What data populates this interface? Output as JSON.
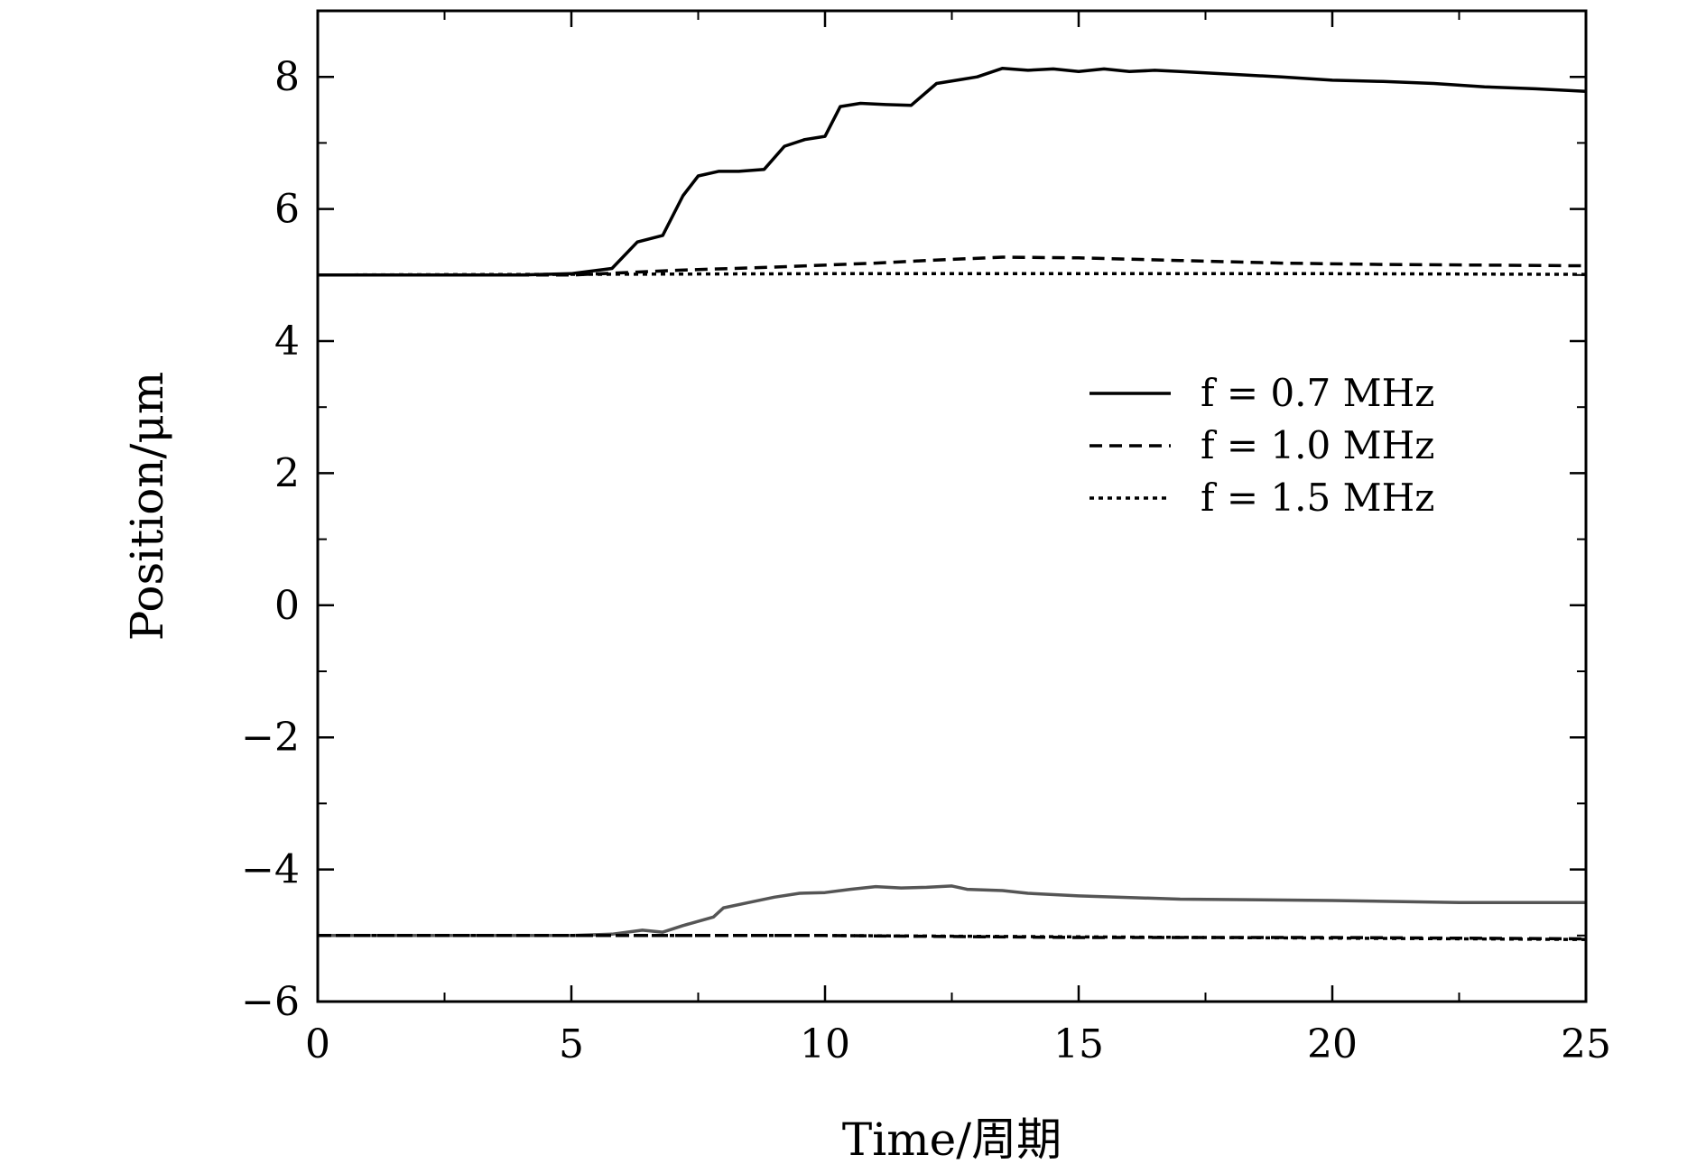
{
  "chart_data": {
    "type": "line",
    "xlabel": "Time/周期",
    "ylabel": "Position/μm",
    "xlim": [
      0,
      25
    ],
    "ylim": [
      -6,
      9
    ],
    "xticks": [
      0,
      5,
      10,
      15,
      20,
      25
    ],
    "xtick_labels": [
      "0",
      "5",
      "10",
      "15",
      "20",
      "25"
    ],
    "yticks": [
      -6,
      -4,
      -2,
      0,
      2,
      4,
      6,
      8
    ],
    "ytick_labels": [
      "−6",
      "−4",
      "−2",
      "0",
      "2",
      "4",
      "6",
      "8"
    ],
    "grid": false,
    "legend_position": "center-right",
    "series": [
      {
        "name": "f = 0.7 MHz",
        "style": "solid",
        "color": "#000000",
        "x": [
          0,
          4,
          5,
          5.8,
          6.3,
          6.8,
          7.2,
          7.5,
          7.9,
          8.3,
          8.8,
          9.2,
          9.6,
          10.0,
          10.3,
          10.7,
          11.2,
          11.7,
          12.2,
          12.6,
          13.0,
          13.5,
          14.0,
          14.5,
          15.0,
          15.5,
          16.0,
          16.5,
          17.0,
          18,
          19,
          20,
          21,
          22,
          23,
          24,
          25
        ],
        "y": [
          5.0,
          5.0,
          5.02,
          5.1,
          5.5,
          5.6,
          6.2,
          6.5,
          6.57,
          6.57,
          6.6,
          6.95,
          7.05,
          7.1,
          7.55,
          7.6,
          7.58,
          7.57,
          7.9,
          7.95,
          8.0,
          8.13,
          8.1,
          8.12,
          8.08,
          8.12,
          8.08,
          8.1,
          8.08,
          8.04,
          8.0,
          7.95,
          7.93,
          7.9,
          7.85,
          7.82,
          7.78
        ]
      },
      {
        "name": "f = 1.0 MHz",
        "style": "dashed",
        "color": "#000000",
        "x": [
          0,
          5,
          7,
          9,
          11,
          12,
          13.5,
          15,
          17,
          19,
          21,
          23,
          25
        ],
        "y": [
          5.0,
          5.0,
          5.07,
          5.12,
          5.18,
          5.22,
          5.27,
          5.26,
          5.22,
          5.18,
          5.16,
          5.15,
          5.14
        ]
      },
      {
        "name": "f = 1.5 MHz",
        "style": "dotted",
        "color": "#000000",
        "x": [
          0,
          10,
          20,
          25
        ],
        "y": [
          5.0,
          5.02,
          5.02,
          5.01
        ]
      },
      {
        "style": "solid",
        "color": "#555555",
        "x": [
          0,
          5,
          5.8,
          6.4,
          6.8,
          7.2,
          7.8,
          8.0,
          8.5,
          9.0,
          9.5,
          10.0,
          10.5,
          11.0,
          11.5,
          12.0,
          12.5,
          12.8,
          13.5,
          14.0,
          15.0,
          17,
          20,
          22.5,
          25
        ],
        "y": [
          -5.0,
          -5.0,
          -4.98,
          -4.92,
          -4.95,
          -4.85,
          -4.72,
          -4.58,
          -4.5,
          -4.42,
          -4.36,
          -4.35,
          -4.3,
          -4.26,
          -4.28,
          -4.27,
          -4.25,
          -4.3,
          -4.32,
          -4.36,
          -4.4,
          -4.45,
          -4.47,
          -4.5,
          -4.5
        ]
      },
      {
        "style": "dashed",
        "color": "#000000",
        "x": [
          0,
          6,
          10,
          15,
          20,
          25
        ],
        "y": [
          -5.0,
          -5.0,
          -5.0,
          -5.03,
          -5.03,
          -5.05
        ]
      },
      {
        "style": "dotted",
        "color": "#000000",
        "x": [
          0,
          10,
          15,
          20,
          25
        ],
        "y": [
          -5.0,
          -5.0,
          -5.02,
          -5.04,
          -5.06
        ]
      }
    ]
  }
}
